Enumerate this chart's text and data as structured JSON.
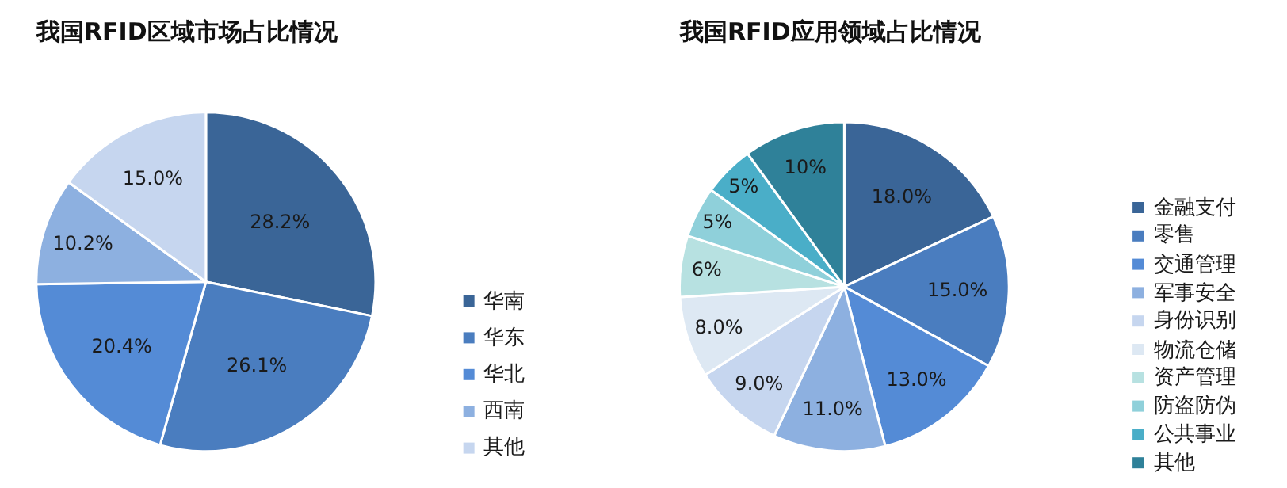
{
  "chart_data": [
    {
      "type": "pie",
      "title": "我国RFID区域市场占比情况",
      "categories": [
        "华南",
        "华东",
        "华北",
        "西南",
        "其他"
      ],
      "values": [
        28.2,
        26.1,
        20.4,
        10.2,
        15.0
      ],
      "value_labels": [
        "28.2%",
        "26.1%",
        "20.4%",
        "10.2%",
        "15.0%"
      ],
      "colors": [
        "#3a6597",
        "#4a7dbf",
        "#548bd6",
        "#8db0e0",
        "#c6d6ef"
      ],
      "legend": "right"
    },
    {
      "type": "pie",
      "title": "我国RFID应用领域占比情况",
      "categories": [
        "金融支付",
        "零售",
        "交通管理",
        "军事安全",
        "身份识别",
        "物流仓储",
        "资产管理",
        "防盗防伪",
        "公共事业",
        "其他"
      ],
      "values": [
        18.0,
        15.0,
        13.0,
        11.0,
        9.0,
        8.0,
        6,
        5,
        5,
        10
      ],
      "value_labels": [
        "18.0%",
        "15.0%",
        "13.0%",
        "11.0%",
        "9.0%",
        "8.0%",
        "6%",
        "5%",
        "5%",
        "10%"
      ],
      "colors": [
        "#3a6597",
        "#4a7dbf",
        "#548bd6",
        "#8db0e0",
        "#c6d6ef",
        "#dde8f3",
        "#b7e1e1",
        "#8fd0da",
        "#4aaec8",
        "#2f8199"
      ],
      "legend": "right"
    }
  ]
}
